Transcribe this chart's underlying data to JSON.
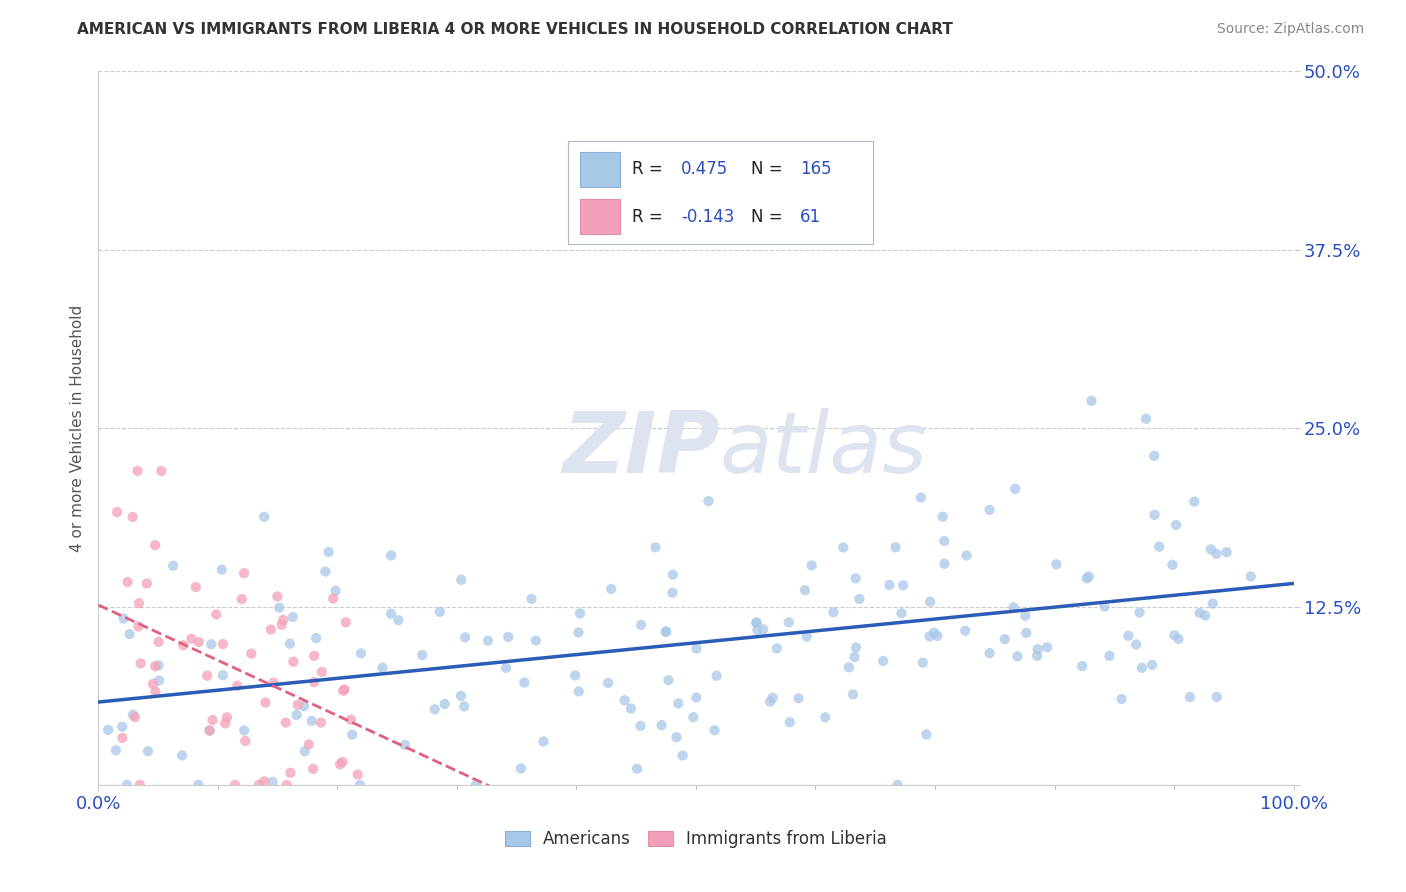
{
  "title": "AMERICAN VS IMMIGRANTS FROM LIBERIA 4 OR MORE VEHICLES IN HOUSEHOLD CORRELATION CHART",
  "source": "Source: ZipAtlas.com",
  "ylabel": "4 or more Vehicles in Household",
  "xlim": [
    0,
    1.0
  ],
  "ylim": [
    0,
    0.5
  ],
  "yticks": [
    0.0,
    0.125,
    0.25,
    0.375,
    0.5
  ],
  "ytick_labels": [
    "",
    "12.5%",
    "25.0%",
    "37.5%",
    "50.0%"
  ],
  "ytick_labels_right": [
    "",
    "12.5%",
    "25.0%",
    "37.5%",
    "50.0%"
  ],
  "xtick_labels": [
    "0.0%",
    "100.0%"
  ],
  "americans_R": 0.475,
  "americans_N": 165,
  "liberia_R": -0.143,
  "liberia_N": 61,
  "americans_color": "#a8c8e8",
  "liberia_color": "#f4a0b8",
  "americans_line_color": "#2a5cb8",
  "liberia_line_color": "#e06080",
  "background_color": "#ffffff",
  "grid_color": "#cccccc",
  "watermark_text": "ZIPatlas",
  "watermark_color": "#dde4f0",
  "title_color": "#333333",
  "legend_text_color": "#2a50c0",
  "axis_label_color": "#555555",
  "tick_label_color": "#2a50c0",
  "legend_box_color": "#e8eef8",
  "legend_border_color": "#b0b8d0"
}
